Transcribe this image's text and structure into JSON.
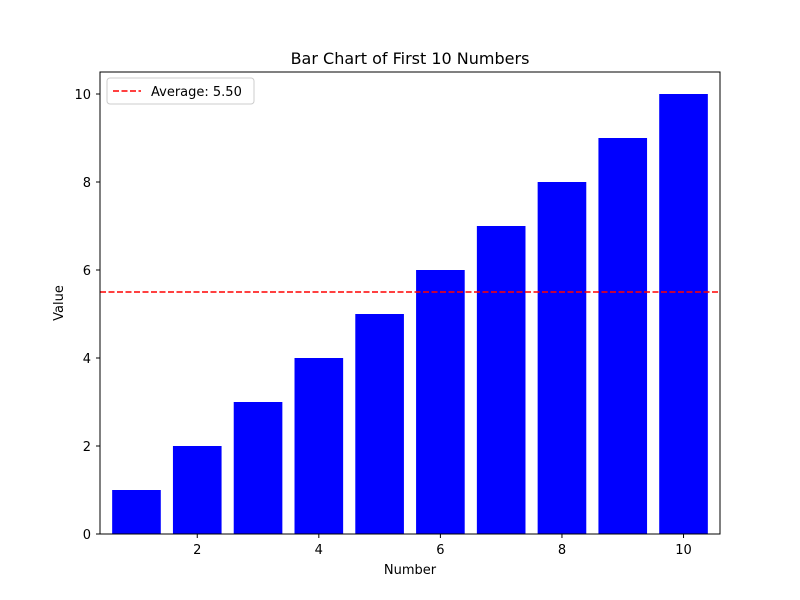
{
  "chart_data": {
    "type": "bar",
    "title": "Bar Chart of First 10 Numbers",
    "xlabel": "Number",
    "ylabel": "Value",
    "categories": [
      1,
      2,
      3,
      4,
      5,
      6,
      7,
      8,
      9,
      10
    ],
    "values": [
      1,
      2,
      3,
      4,
      5,
      6,
      7,
      8,
      9,
      10
    ],
    "bar_color": "#0000ff",
    "xlim": [
      0.4,
      10.6
    ],
    "ylim": [
      0,
      10.5
    ],
    "xticks": [
      2,
      4,
      6,
      8,
      10
    ],
    "yticks": [
      0,
      2,
      4,
      6,
      8,
      10
    ],
    "reference_line": {
      "value": 5.5,
      "label": "Average: 5.50",
      "color": "#ff0000",
      "style": "dashed"
    },
    "legend": {
      "position": "top-left"
    },
    "grid": false
  }
}
